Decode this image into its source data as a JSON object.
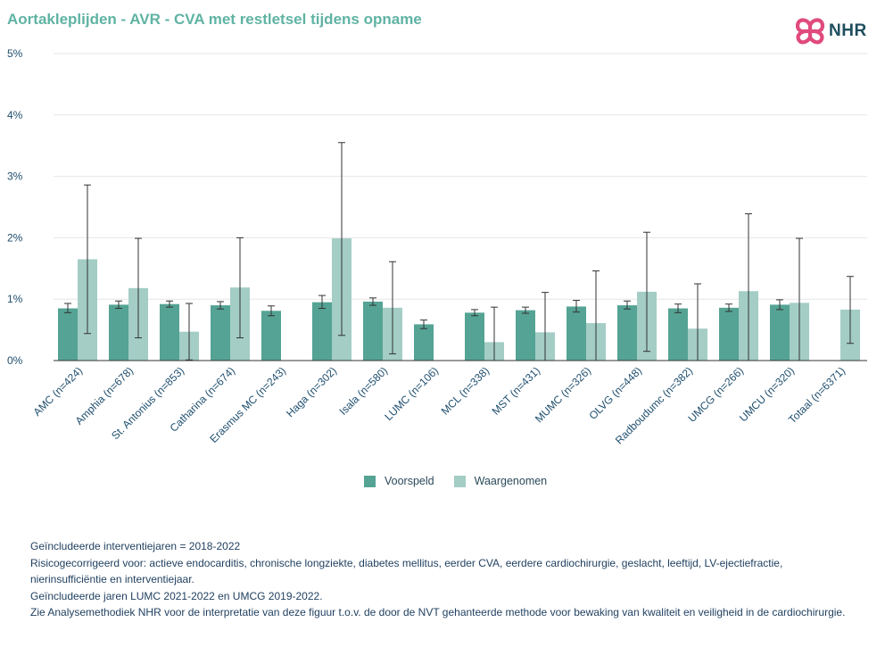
{
  "title": "Aortakleplijden - AVR - CVA met restletsel tijdens opname",
  "logo": {
    "text": "NHR",
    "icon": "nhr-heart-knot-icon",
    "color": "#e04a7c"
  },
  "colors": {
    "voorspeld": "#55a394",
    "waargenomen": "#a3cdc5",
    "title": "#5fb3a3",
    "text": "#1e4e6e"
  },
  "legend": [
    "Voorspeld",
    "Waargenomen"
  ],
  "chart_data": {
    "type": "bar",
    "ylim": [
      0,
      5
    ],
    "yticks": [
      "0%",
      "1%",
      "2%",
      "3%",
      "4%",
      "5%"
    ],
    "yticks_values": [
      0,
      1,
      2,
      3,
      4,
      5
    ],
    "grid": true,
    "legend_position": "bottom",
    "categories": [
      "AMC (n=424)",
      "Amphia (n=678)",
      "St. Antonius (n=853)",
      "Catharina (n=674)",
      "Erasmus MC (n=243)",
      "Haga (n=302)",
      "Isala (n=580)",
      "LUMC (n=106)",
      "MCL (n=338)",
      "MST (n=431)",
      "MUMC (n=326)",
      "OLVG (n=448)",
      "Radboudumc (n=382)",
      "UMCG (n=266)",
      "UMCU (n=320)",
      "Totaal (n=6371)"
    ],
    "series": [
      {
        "name": "Voorspeld",
        "values": [
          0.85,
          0.91,
          0.92,
          0.9,
          0.81,
          0.95,
          0.96,
          0.59,
          0.78,
          0.82,
          0.88,
          0.9,
          0.85,
          0.86,
          0.91,
          null
        ],
        "ci_low": [
          0.78,
          0.85,
          0.87,
          0.84,
          0.73,
          0.85,
          0.9,
          0.52,
          0.73,
          0.77,
          0.79,
          0.84,
          0.78,
          0.8,
          0.83,
          null
        ],
        "ci_high": [
          0.93,
          0.97,
          0.97,
          0.96,
          0.89,
          1.06,
          1.02,
          0.66,
          0.83,
          0.87,
          0.98,
          0.97,
          0.92,
          0.92,
          0.99,
          null
        ]
      },
      {
        "name": "Waargenomen",
        "values": [
          1.65,
          1.18,
          0.47,
          1.19,
          0.0,
          1.99,
          0.86,
          0.0,
          0.3,
          0.46,
          0.61,
          1.12,
          0.52,
          1.13,
          0.94,
          0.83
        ],
        "ci_low": [
          0.44,
          0.37,
          0.01,
          0.37,
          0.0,
          0.41,
          0.11,
          0.0,
          0.0,
          0.0,
          0.0,
          0.15,
          0.0,
          0.0,
          0.0,
          0.28
        ],
        "ci_high": [
          2.86,
          1.99,
          0.93,
          2.0,
          0.0,
          3.55,
          1.61,
          0.0,
          0.87,
          1.11,
          1.46,
          2.09,
          1.25,
          2.39,
          1.99,
          1.37
        ]
      }
    ]
  },
  "footnotes": [
    "Geïncludeerde interventiejaren = 2018-2022",
    "Risicogecorrigeerd voor: actieve endocarditis, chronische longziekte, diabetes mellitus, eerder CVA, eerdere cardiochirurgie, geslacht, leeftijd, LV-ejectiefractie, nierinsufficiëntie en interventiejaar.",
    "Geïncludeerde jaren LUMC 2021-2022 en UMCG 2019-2022.",
    "Zie Analysemethodiek NHR voor de interpretatie van deze figuur t.o.v. de door de NVT gehanteerde methode voor bewaking van kwaliteit en veiligheid in de cardiochirurgie."
  ]
}
